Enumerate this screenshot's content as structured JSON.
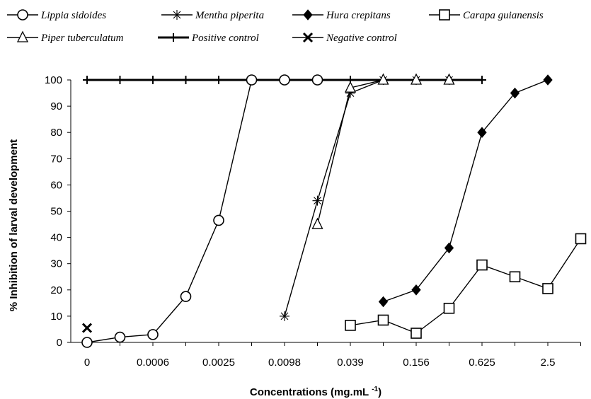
{
  "chart_data": {
    "type": "line",
    "xlabel": "Concentrations (mg.mL",
    "xlabel_sup": "-1",
    "xlabel_close": ")",
    "ylabel": "% Inhibition of larval development",
    "ylim": [
      0,
      100
    ],
    "yticks": [
      0,
      10,
      20,
      30,
      40,
      50,
      60,
      70,
      80,
      90,
      100
    ],
    "x_tick_labels": [
      "0",
      "0.0006",
      "0.0025",
      "0.0098",
      "0.039",
      "0.156",
      "0.625",
      "2.5"
    ],
    "x_positions_count": 16,
    "grid": false,
    "legend_position": "top",
    "series": [
      {
        "name": "Lippia sidoides",
        "marker": "circle-open",
        "color": "#000000",
        "x": [
          0,
          1,
          2,
          3,
          4,
          5,
          6,
          7
        ],
        "y": [
          0,
          2,
          3,
          17.5,
          46.5,
          100,
          100,
          100
        ]
      },
      {
        "name": "Mentha piperita",
        "marker": "asterisk",
        "color": "#000000",
        "x": [
          6,
          7,
          8,
          9,
          10,
          11
        ],
        "y": [
          10,
          54,
          95,
          100,
          100,
          100
        ]
      },
      {
        "name": "Hura crepitans",
        "marker": "diamond-filled",
        "color": "#000000",
        "x": [
          9,
          10,
          11,
          12,
          13,
          14
        ],
        "y": [
          15.5,
          20,
          36,
          80,
          95,
          100
        ]
      },
      {
        "name": "Carapa guianensis",
        "marker": "square-open",
        "color": "#000000",
        "x": [
          8,
          9,
          10,
          11,
          12,
          13,
          14,
          15
        ],
        "y": [
          6.5,
          8.5,
          3.5,
          13,
          29.5,
          25,
          20.5,
          39.5
        ]
      },
      {
        "name": "Piper tuberculatum",
        "marker": "triangle-open",
        "color": "#000000",
        "x": [
          7,
          8,
          9,
          10,
          11
        ],
        "y": [
          45,
          97,
          100,
          100,
          100
        ]
      },
      {
        "name": "Positive control",
        "marker": "plus",
        "color": "#000000",
        "x": [
          0,
          1,
          2,
          3,
          4,
          5,
          6,
          7,
          8,
          9,
          10,
          11,
          12
        ],
        "y": [
          100,
          100,
          100,
          100,
          100,
          100,
          100,
          100,
          100,
          100,
          100,
          100,
          100
        ]
      },
      {
        "name": "Negative control",
        "marker": "x",
        "color": "#000000",
        "x": [
          0
        ],
        "y": [
          5.5
        ]
      }
    ]
  }
}
